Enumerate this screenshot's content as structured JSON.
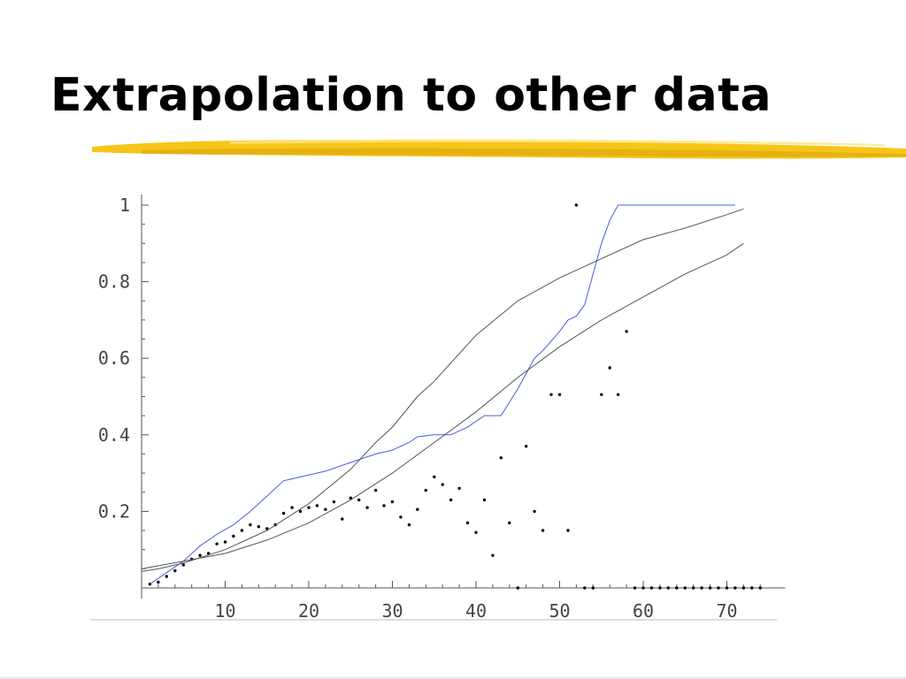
{
  "slide": {
    "title": "Extrapolation to other data",
    "underline_color": "#f5c518"
  },
  "chart_data": {
    "type": "line",
    "title": "",
    "xlabel": "",
    "ylabel": "",
    "xlim": [
      0,
      77
    ],
    "ylim": [
      0,
      1
    ],
    "grid": false,
    "x_ticks": [
      10,
      20,
      30,
      40,
      50,
      60,
      70
    ],
    "x_tick_labels": [
      "10",
      "20",
      "30",
      "40",
      "50",
      "60",
      "70"
    ],
    "y_ticks": [
      0.2,
      0.4,
      0.6,
      0.8,
      1
    ],
    "y_tick_labels": [
      "0.2",
      "0.4",
      "0.6",
      "0.8",
      "1"
    ],
    "series": [
      {
        "kind": "scatter",
        "color": "#000000",
        "points": [
          [
            1,
            0.01
          ],
          [
            2,
            0.015
          ],
          [
            3,
            0.03
          ],
          [
            4,
            0.045
          ],
          [
            5,
            0.06
          ],
          [
            6,
            0.075
          ],
          [
            7,
            0.085
          ],
          [
            8,
            0.09
          ],
          [
            9,
            0.115
          ],
          [
            10,
            0.12
          ],
          [
            11,
            0.135
          ],
          [
            12,
            0.15
          ],
          [
            13,
            0.165
          ],
          [
            14,
            0.16
          ],
          [
            15,
            0.155
          ],
          [
            16,
            0.165
          ],
          [
            17,
            0.195
          ],
          [
            18,
            0.21
          ],
          [
            19,
            0.2
          ],
          [
            20,
            0.21
          ],
          [
            21,
            0.215
          ],
          [
            22,
            0.205
          ],
          [
            23,
            0.225
          ],
          [
            24,
            0.18
          ],
          [
            25,
            0.235
          ],
          [
            26,
            0.23
          ],
          [
            27,
            0.21
          ],
          [
            28,
            0.255
          ],
          [
            29,
            0.215
          ],
          [
            30,
            0.225
          ],
          [
            31,
            0.185
          ],
          [
            32,
            0.165
          ],
          [
            33,
            0.205
          ],
          [
            34,
            0.255
          ],
          [
            35,
            0.29
          ],
          [
            36,
            0.27
          ],
          [
            37,
            0.23
          ],
          [
            38,
            0.26
          ],
          [
            39,
            0.17
          ],
          [
            40,
            0.145
          ],
          [
            41,
            0.23
          ],
          [
            42,
            0.085
          ],
          [
            43,
            0.34
          ],
          [
            44,
            0.17
          ],
          [
            45,
            0.0
          ],
          [
            46,
            0.37
          ],
          [
            47,
            0.2
          ],
          [
            48,
            0.15
          ],
          [
            49,
            0.505
          ],
          [
            50,
            0.505
          ],
          [
            51,
            0.15
          ],
          [
            52,
            1.0
          ],
          [
            53,
            0.0
          ],
          [
            54,
            0.0
          ],
          [
            55,
            0.505
          ],
          [
            56,
            0.575
          ],
          [
            57,
            0.505
          ],
          [
            58,
            0.67
          ],
          [
            59,
            0.0
          ],
          [
            60,
            0.0
          ],
          [
            61,
            0.0
          ],
          [
            62,
            0.0
          ],
          [
            63,
            0.0
          ],
          [
            64,
            0.0
          ],
          [
            65,
            0.0
          ],
          [
            66,
            0.0
          ],
          [
            67,
            0.0
          ],
          [
            68,
            0.0
          ],
          [
            69,
            0.0
          ],
          [
            70,
            0.0
          ],
          [
            71,
            0.0
          ],
          [
            72,
            0.0
          ],
          [
            73,
            0.0
          ],
          [
            74,
            0.0
          ]
        ]
      },
      {
        "kind": "line",
        "color": "#4a5ee0",
        "points": [
          [
            1,
            0.01
          ],
          [
            3,
            0.04
          ],
          [
            5,
            0.07
          ],
          [
            7,
            0.11
          ],
          [
            9,
            0.14
          ],
          [
            11,
            0.165
          ],
          [
            13,
            0.2
          ],
          [
            15,
            0.24
          ],
          [
            17,
            0.28
          ],
          [
            18,
            0.285
          ],
          [
            19,
            0.29
          ],
          [
            20,
            0.295
          ],
          [
            22,
            0.305
          ],
          [
            24,
            0.32
          ],
          [
            26,
            0.335
          ],
          [
            28,
            0.35
          ],
          [
            30,
            0.36
          ],
          [
            32,
            0.38
          ],
          [
            33,
            0.395
          ],
          [
            35,
            0.4
          ],
          [
            37,
            0.4
          ],
          [
            39,
            0.42
          ],
          [
            41,
            0.45
          ],
          [
            43,
            0.45
          ],
          [
            45,
            0.52
          ],
          [
            47,
            0.6
          ],
          [
            48,
            0.62
          ],
          [
            50,
            0.67
          ],
          [
            51,
            0.7
          ],
          [
            52,
            0.71
          ],
          [
            53,
            0.74
          ],
          [
            54,
            0.82
          ],
          [
            55,
            0.9
          ],
          [
            56,
            0.96
          ],
          [
            57,
            1.0
          ],
          [
            71,
            1.0
          ]
        ]
      },
      {
        "kind": "line",
        "color": "#555555",
        "points": [
          [
            0,
            0.043
          ],
          [
            2,
            0.05
          ],
          [
            5,
            0.065
          ],
          [
            10,
            0.1
          ],
          [
            15,
            0.15
          ],
          [
            20,
            0.22
          ],
          [
            25,
            0.31
          ],
          [
            28,
            0.38
          ],
          [
            30,
            0.42
          ],
          [
            33,
            0.5
          ],
          [
            35,
            0.54
          ],
          [
            40,
            0.66
          ],
          [
            45,
            0.75
          ],
          [
            50,
            0.81
          ],
          [
            52,
            0.83
          ],
          [
            55,
            0.86
          ],
          [
            60,
            0.91
          ],
          [
            65,
            0.94
          ],
          [
            70,
            0.975
          ],
          [
            72,
            0.99
          ]
        ]
      },
      {
        "kind": "line",
        "color": "#555555",
        "points": [
          [
            0,
            0.05
          ],
          [
            5,
            0.07
          ],
          [
            10,
            0.09
          ],
          [
            15,
            0.125
          ],
          [
            20,
            0.17
          ],
          [
            25,
            0.23
          ],
          [
            30,
            0.3
          ],
          [
            35,
            0.38
          ],
          [
            40,
            0.46
          ],
          [
            45,
            0.55
          ],
          [
            50,
            0.63
          ],
          [
            55,
            0.7
          ],
          [
            60,
            0.76
          ],
          [
            65,
            0.82
          ],
          [
            70,
            0.87
          ],
          [
            72,
            0.9
          ]
        ]
      }
    ]
  }
}
